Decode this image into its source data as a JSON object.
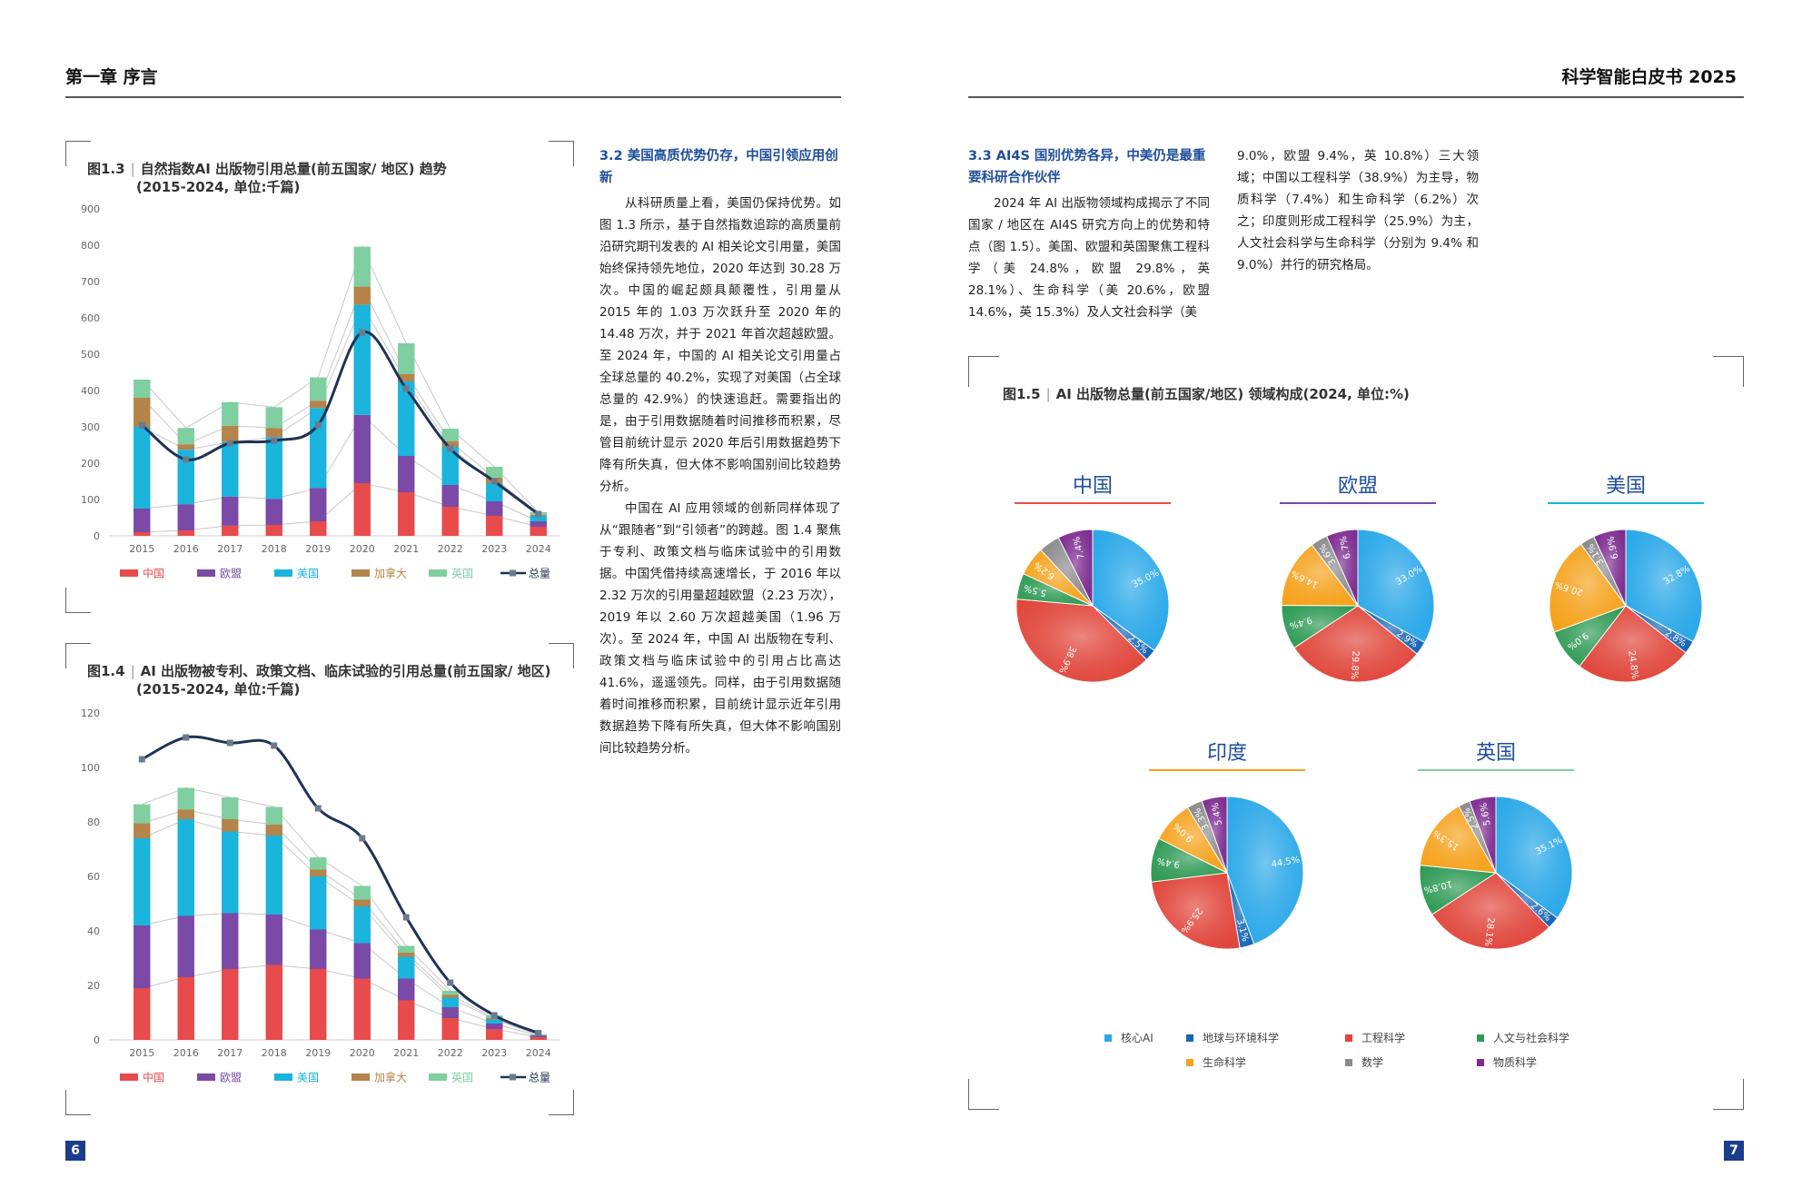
{
  "header": {
    "left": "第一章 序言",
    "right": "科学智能白皮书 2025"
  },
  "page_numbers": {
    "left": "6",
    "right": "7"
  },
  "colors": {
    "china": "#e84b4b",
    "eu": "#7a4aa6",
    "usa": "#1ab4dc",
    "canada": "#b5844a",
    "uk": "#7fcfa0",
    "total": "#1e3355",
    "core_ai": "#2aa8e8",
    "earth_env": "#1565b5",
    "engineering": "#e0453a",
    "humanities": "#2e9a55",
    "life": "#f5a21c",
    "math": "#8a8a8a",
    "materials": "#7b2a8e"
  },
  "section32": {
    "title": "3.2 美国高质优势仍存，中国引领应用创新",
    "para1": "从科研质量上看，美国仍保持优势。如图 1.3 所示，基于自然指数追踪的高质量前沿研究期刊发表的 AI 相关论文引用量，美国始终保持领先地位，2020 年达到 30.28 万次。中国的崛起颇具颠覆性，引用量从 2015 年的 1.03 万次跃升至 2020 年的 14.48 万次，并于 2021 年首次超越欧盟。至 2024 年，中国的 AI 相关论文引用量占全球总量的 40.2%，实现了对美国（占全球总量的 42.9%）的快速追赶。需要指出的是，由于引用数据随着时间推移而积累，尽管目前统计显示 2020 年后引用数据趋势下降有所失真，但大体不影响国别间比较趋势分析。",
    "para2": "中国在 AI 应用领域的创新同样体现了从“跟随者”到“引领者”的跨越。图 1.4 聚焦于专利、政策文档与临床试验中的引用数据。中国凭借持续高速增长，于 2016 年以 2.32 万次的引用量超越欧盟（2.23 万次），2019 年以 2.60 万次超越美国（1.96 万次）。至 2024 年，中国 AI 出版物在专利、政策文档与临床试验中的引用占比高达 41.6%，遥遥领先。同样，由于引用数据随着时间推移而积累，目前统计显示近年引用数据趋势下降有所失真，但大体不影响国别间比较趋势分析。"
  },
  "section33": {
    "title": "3.3 AI4S 国别优势各异，中美仍是最重要科研合作伙伴",
    "col1": "2024 年 AI 出版物领域构成揭示了不同国家 / 地区在 AI4S 研究方向上的优势和特点（图 1.5）。美国、欧盟和英国聚焦工程科学（美 24.8%，欧盟 29.8%，英 28.1%）、生命科学（美 20.6%，欧盟 14.6%，英 15.3%）及人文社会科学（美",
    "col2": "9.0%，欧盟 9.4%，英 10.8%）三大领域；中国以工程科学（38.9%）为主导，物质科学（7.4%）和生命科学（6.2%）次之；印度则形成工程科学（25.9%）为主，人文社会科学与生命科学（分别为 9.4% 和 9.0%）并行的研究格局。"
  },
  "fig13": {
    "num": "图1.3",
    "title": "自然指数AI 出版物引用总量(前五国家/ 地区) 趋势",
    "subtitle": "(2015-2024, 单位:千篇)"
  },
  "fig14": {
    "num": "图1.4",
    "title": "AI 出版物被专利、政策文档、临床试验的引用总量(前五国家/ 地区)",
    "subtitle": "(2015-2024, 单位:千篇)"
  },
  "fig15": {
    "num": "图1.5",
    "title": "AI 出版物总量(前五国家/地区) 领域构成(2024, 单位:%)"
  },
  "chart_data": [
    {
      "type": "bar",
      "stacked": true,
      "with_line": "总量",
      "categories": [
        "2015",
        "2016",
        "2017",
        "2018",
        "2019",
        "2020",
        "2021",
        "2022",
        "2023",
        "2024"
      ],
      "ylim": [
        0,
        900
      ],
      "yticks": [
        0,
        100,
        200,
        300,
        400,
        500,
        600,
        700,
        800,
        900
      ],
      "series": [
        {
          "name": "中国",
          "values": [
            10,
            15,
            28,
            30,
            40,
            145,
            120,
            80,
            55,
            25
          ]
        },
        {
          "name": "欧盟",
          "values": [
            65,
            72,
            80,
            72,
            92,
            188,
            100,
            60,
            40,
            15
          ]
        },
        {
          "name": "美国",
          "values": [
            225,
            150,
            150,
            170,
            220,
            303,
            205,
            105,
            50,
            15
          ]
        },
        {
          "name": "加拿大",
          "values": [
            80,
            15,
            45,
            25,
            20,
            50,
            20,
            15,
            15,
            3
          ]
        },
        {
          "name": "英国",
          "values": [
            50,
            45,
            65,
            57,
            64,
            110,
            85,
            35,
            30,
            7
          ]
        }
      ],
      "line": {
        "name": "总量",
        "values": [
          305,
          210,
          255,
          262,
          305,
          560,
          405,
          240,
          150,
          60
        ]
      },
      "legend": [
        "中国",
        "欧盟",
        "美国",
        "加拿大",
        "英国",
        "总量"
      ]
    },
    {
      "type": "bar",
      "stacked": true,
      "with_line": "总量",
      "categories": [
        "2015",
        "2016",
        "2017",
        "2018",
        "2019",
        "2020",
        "2021",
        "2022",
        "2023",
        "2024"
      ],
      "ylim": [
        0,
        120
      ],
      "yticks": [
        0,
        20,
        40,
        60,
        80,
        100,
        120
      ],
      "series": [
        {
          "name": "中国",
          "values": [
            19,
            23,
            26,
            27.5,
            26,
            22.5,
            14.5,
            8,
            4,
            1
          ]
        },
        {
          "name": "欧盟",
          "values": [
            23,
            22.5,
            20.5,
            18.5,
            14.5,
            13,
            8,
            4,
            2,
            0.5
          ]
        },
        {
          "name": "美国",
          "values": [
            32,
            35.5,
            30,
            29,
            19.5,
            13.5,
            8,
            3.5,
            1.5,
            0.3
          ]
        },
        {
          "name": "加拿大",
          "values": [
            5.5,
            3.5,
            4.5,
            4,
            2.5,
            2.5,
            1.5,
            1,
            0.5,
            0.1
          ]
        },
        {
          "name": "英国",
          "values": [
            7,
            8,
            8,
            6.5,
            4.5,
            5,
            2.5,
            1.5,
            1,
            0.1
          ]
        }
      ],
      "line": {
        "name": "总量",
        "values": [
          103,
          111,
          109,
          108,
          85,
          74,
          45,
          21,
          9,
          2.5
        ]
      },
      "legend": [
        "中国",
        "欧盟",
        "美国",
        "加拿大",
        "英国",
        "总量"
      ]
    },
    {
      "type": "pie",
      "categories": [
        "核心AI",
        "地球与环境科学",
        "工程科学",
        "人文与社会科学",
        "生命科学",
        "数学",
        "物质科学"
      ],
      "legend": [
        "核心AI",
        "地球与环境科学",
        "工程科学",
        "人文与社会科学",
        "生命科学",
        "数学",
        "物质科学"
      ],
      "pies": [
        {
          "name": "中国",
          "values": [
            35.0,
            2.5,
            38.9,
            5.5,
            6.2,
            4.5,
            7.4
          ],
          "labels": [
            "35.0%",
            "2.5%",
            "38.9%",
            "5.5%",
            "6.2%",
            "",
            "7.4%"
          ],
          "underline": "#e84b4b"
        },
        {
          "name": "欧盟",
          "values": [
            33.0,
            2.9,
            29.8,
            9.4,
            14.6,
            3.6,
            6.7
          ],
          "labels": [
            "33.0%",
            "2.9%",
            "29.8%",
            "9.4%",
            "14.6%",
            "3.6%",
            "6.7%"
          ],
          "underline": "#7a4aa6"
        },
        {
          "name": "美国",
          "values": [
            32.8,
            2.8,
            24.8,
            9.0,
            20.6,
            3.1,
            6.9
          ],
          "labels": [
            "32.8%",
            "2.8%",
            "24.8%",
            "9.0%",
            "20.6%",
            "3.1%",
            "6.9%"
          ],
          "underline": "#1ab4dc"
        },
        {
          "name": "印度",
          "values": [
            44.5,
            3.1,
            25.9,
            9.4,
            9.0,
            3.3,
            5.4
          ],
          "labels": [
            "44.5%",
            "3.1%",
            "25.9%",
            "9.4%",
            "9.0%",
            "3.3%",
            "5.4%"
          ],
          "underline": "#f5a21c"
        },
        {
          "name": "英国",
          "values": [
            35.1,
            2.6,
            28.1,
            10.8,
            15.3,
            2.5,
            5.6
          ],
          "labels": [
            "35.1%",
            "2.6%",
            "28.1%",
            "10.8%",
            "15.3%",
            "2.5%",
            "5.6%"
          ],
          "underline": "#7fcfa0"
        }
      ]
    }
  ]
}
